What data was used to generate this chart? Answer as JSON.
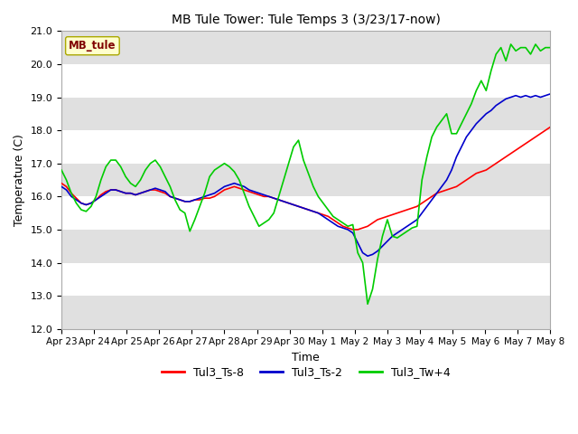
{
  "title": "MB Tule Tower: Tule Temps 3 (3/23/17-now)",
  "xlabel": "Time",
  "ylabel": "Temperature (C)",
  "ylim": [
    12.0,
    21.0
  ],
  "yticks": [
    12.0,
    13.0,
    14.0,
    15.0,
    16.0,
    17.0,
    18.0,
    19.0,
    20.0,
    21.0
  ],
  "xtick_labels": [
    "Apr 23",
    "Apr 24",
    "Apr 25",
    "Apr 26",
    "Apr 27",
    "Apr 28",
    "Apr 29",
    "Apr 30",
    "May 1",
    "May 2",
    "May 3",
    "May 4",
    "May 5",
    "May 6",
    "May 7",
    "May 8"
  ],
  "legend_labels": [
    "Tul3_Ts-8",
    "Tul3_Ts-2",
    "Tul3_Tw+4"
  ],
  "line_colors": [
    "#ff0000",
    "#0000cc",
    "#00cc00"
  ],
  "bg_color": "#ffffff",
  "plot_bg_white": "#ffffff",
  "plot_bg_gray": "#e0e0e0",
  "label_box_color": "#ffffcc",
  "label_box_text": "MB_tule",
  "label_box_text_color": "#800000",
  "ts8": [
    16.4,
    16.3,
    16.1,
    15.95,
    15.8,
    15.75,
    15.8,
    15.9,
    16.05,
    16.15,
    16.2,
    16.2,
    16.15,
    16.1,
    16.1,
    16.05,
    16.1,
    16.15,
    16.2,
    16.2,
    16.15,
    16.1,
    16.0,
    15.95,
    15.9,
    15.85,
    15.85,
    15.9,
    15.9,
    15.95,
    15.95,
    16.0,
    16.1,
    16.2,
    16.25,
    16.3,
    16.25,
    16.2,
    16.15,
    16.1,
    16.05,
    16.0,
    16.0,
    15.95,
    15.9,
    15.85,
    15.8,
    15.75,
    15.7,
    15.65,
    15.6,
    15.55,
    15.5,
    15.45,
    15.4,
    15.3,
    15.2,
    15.1,
    15.05,
    15.0,
    15.0,
    15.05,
    15.1,
    15.2,
    15.3,
    15.35,
    15.4,
    15.45,
    15.5,
    15.55,
    15.6,
    15.65,
    15.7,
    15.8,
    15.9,
    16.0,
    16.1,
    16.15,
    16.2,
    16.25,
    16.3,
    16.4,
    16.5,
    16.6,
    16.7,
    16.75,
    16.8,
    16.9,
    17.0,
    17.1,
    17.2,
    17.3,
    17.4,
    17.5,
    17.6,
    17.7,
    17.8,
    17.9,
    18.0,
    18.1
  ],
  "ts2": [
    16.3,
    16.2,
    16.0,
    15.9,
    15.8,
    15.75,
    15.8,
    15.9,
    16.0,
    16.1,
    16.2,
    16.2,
    16.15,
    16.1,
    16.1,
    16.05,
    16.1,
    16.15,
    16.2,
    16.25,
    16.2,
    16.15,
    16.0,
    15.95,
    15.9,
    15.85,
    15.85,
    15.9,
    15.95,
    16.0,
    16.05,
    16.1,
    16.2,
    16.3,
    16.35,
    16.4,
    16.35,
    16.3,
    16.2,
    16.15,
    16.1,
    16.05,
    16.0,
    15.95,
    15.9,
    15.85,
    15.8,
    15.75,
    15.7,
    15.65,
    15.6,
    15.55,
    15.5,
    15.4,
    15.3,
    15.2,
    15.1,
    15.05,
    15.0,
    14.9,
    14.6,
    14.3,
    14.2,
    14.25,
    14.35,
    14.5,
    14.65,
    14.8,
    14.9,
    15.0,
    15.1,
    15.2,
    15.3,
    15.5,
    15.7,
    15.9,
    16.1,
    16.3,
    16.5,
    16.8,
    17.2,
    17.5,
    17.8,
    18.0,
    18.2,
    18.35,
    18.5,
    18.6,
    18.75,
    18.85,
    18.95,
    19.0,
    19.05,
    19.0,
    19.05,
    19.0,
    19.05,
    19.0,
    19.05,
    19.1
  ],
  "tw4": [
    16.8,
    16.5,
    16.1,
    15.8,
    15.6,
    15.55,
    15.7,
    16.0,
    16.5,
    16.9,
    17.1,
    17.1,
    16.9,
    16.6,
    16.4,
    16.3,
    16.5,
    16.8,
    17.0,
    17.1,
    16.9,
    16.6,
    16.3,
    15.9,
    15.6,
    15.5,
    14.95,
    15.3,
    15.7,
    16.1,
    16.6,
    16.8,
    16.9,
    17.0,
    16.9,
    16.75,
    16.5,
    16.1,
    15.7,
    15.4,
    15.1,
    15.2,
    15.3,
    15.5,
    16.0,
    16.5,
    17.0,
    17.5,
    17.7,
    17.1,
    16.7,
    16.3,
    16.0,
    15.8,
    15.6,
    15.4,
    15.3,
    15.2,
    15.1,
    15.15,
    14.3,
    14.0,
    12.75,
    13.2,
    14.1,
    14.8,
    15.3,
    14.8,
    14.75,
    14.85,
    14.95,
    15.05,
    15.1,
    16.5,
    17.2,
    17.8,
    18.1,
    18.3,
    18.5,
    17.9,
    17.9,
    18.2,
    18.5,
    18.8,
    19.2,
    19.5,
    19.2,
    19.8,
    20.3,
    20.5,
    20.1,
    20.6,
    20.4,
    20.5,
    20.5,
    20.3,
    20.6,
    20.4,
    20.5,
    20.5
  ]
}
